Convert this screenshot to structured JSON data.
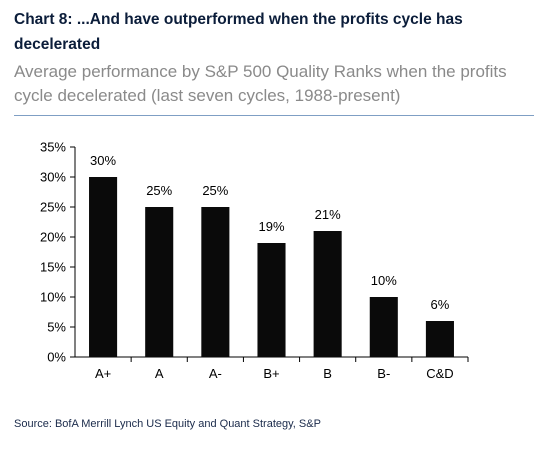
{
  "chart_data": {
    "type": "bar",
    "title": "Chart 8: ...And have outperformed when the profits cycle has decelerated",
    "subtitle": "Average performance by S&P 500 Quality Ranks when the profits cycle decelerated (last seven cycles, 1988-present)",
    "categories": [
      "A+",
      "A",
      "A-",
      "B+",
      "B",
      "B-",
      "C&D"
    ],
    "values": [
      30,
      25,
      25,
      19,
      21,
      10,
      6
    ],
    "data_labels": [
      "30%",
      "25%",
      "25%",
      "19%",
      "21%",
      "10%",
      "6%"
    ],
    "yticks": [
      "0%",
      "5%",
      "10%",
      "15%",
      "20%",
      "25%",
      "30%",
      "35%"
    ],
    "ylim": [
      0,
      35
    ],
    "bar_color": "#0a0a0a",
    "grid": false,
    "source": "Source: BofA Merrill Lynch US Equity and Quant Strategy, S&P"
  }
}
